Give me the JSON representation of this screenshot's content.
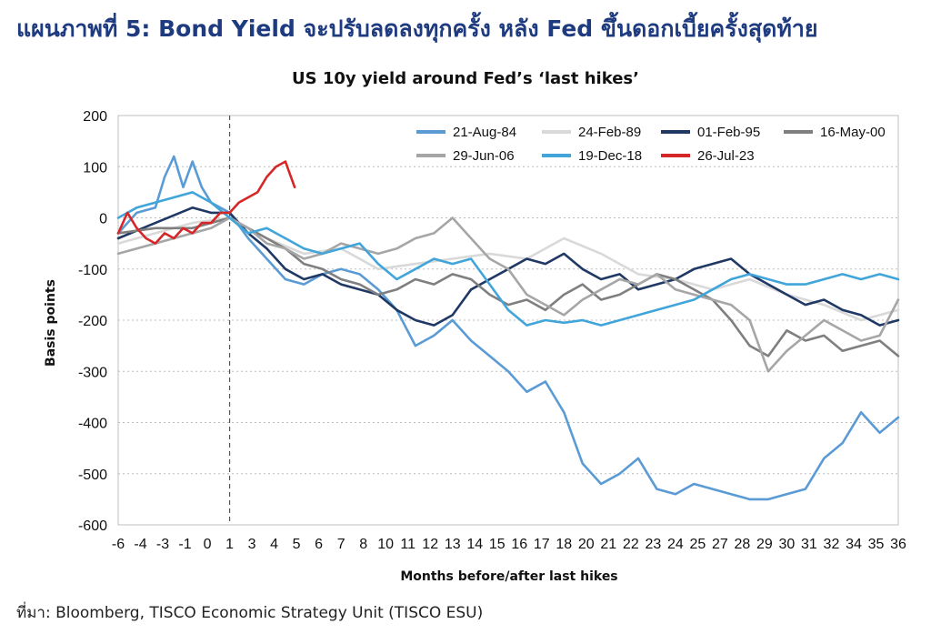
{
  "page": {
    "title": "แผนภาพที่ 5: Bond Yield จะปรับลดลงทุกครั้ง หลัง Fed ขึ้นดอกเบี้ยครั้งสุดท้าย",
    "source": "ที่มา: Bloomberg, TISCO Economic Strategy Unit (TISCO ESU)"
  },
  "chart_data": {
    "type": "line",
    "title": "US 10y yield around Fed’s ‘last hikes’",
    "xlabel": "Months before/after last hikes",
    "ylabel": "Basis points",
    "xlim": [
      -6,
      36
    ],
    "ylim": [
      -600,
      200
    ],
    "x_ticks": [
      "-6",
      "-4",
      "-3",
      "-1",
      "0",
      "1",
      "3",
      "4",
      "5",
      "6",
      "7",
      "8",
      "10",
      "11",
      "12",
      "13",
      "14",
      "15",
      "16",
      "17",
      "18",
      "20",
      "21",
      "22",
      "23",
      "24",
      "25",
      "27",
      "28",
      "29",
      "30",
      "31",
      "32",
      "34",
      "35",
      "36"
    ],
    "y_ticks": [
      200,
      100,
      0,
      -100,
      -200,
      -300,
      -400,
      -500,
      -600
    ],
    "grid": "horizontal dotted",
    "reference_line_x": 0,
    "legend": "top-right",
    "series": [
      {
        "name": "21-Aug-84",
        "color": "#5b9bd5",
        "x": [
          -6,
          -5,
          -4,
          -3.5,
          -3,
          -2.5,
          -2,
          -1.5,
          -1,
          0,
          1,
          2,
          3,
          4,
          5,
          6,
          7,
          8,
          9,
          10,
          11,
          12,
          13,
          14,
          15,
          16,
          17,
          18,
          19,
          20,
          21,
          22,
          23,
          24,
          25,
          26,
          27,
          28,
          29,
          30,
          31,
          32,
          33,
          34,
          35,
          36
        ],
        "y": [
          -30,
          10,
          20,
          80,
          120,
          60,
          110,
          60,
          30,
          10,
          -40,
          -80,
          -120,
          -130,
          -110,
          -100,
          -110,
          -140,
          -180,
          -250,
          -230,
          -200,
          -240,
          -270,
          -300,
          -340,
          -320,
          -380,
          -480,
          -520,
          -500,
          -470,
          -530,
          -540,
          -520,
          -530,
          -540,
          -550,
          -550,
          -540,
          -530,
          -470,
          -440,
          -380,
          -420,
          -390
        ]
      },
      {
        "name": "24-Feb-89",
        "color": "#d9d9d9",
        "x": [
          -6,
          -4,
          -2,
          0,
          2,
          4,
          6,
          8,
          10,
          12,
          14,
          16,
          18,
          20,
          22,
          24,
          26,
          28,
          30,
          32,
          34,
          36
        ],
        "y": [
          -50,
          -30,
          -10,
          0,
          -40,
          -70,
          -60,
          -100,
          -90,
          -80,
          -70,
          -80,
          -40,
          -70,
          -110,
          -120,
          -140,
          -120,
          -150,
          -170,
          -200,
          -180
        ]
      },
      {
        "name": "01-Feb-95",
        "color": "#1f3864",
        "x": [
          -6,
          -4,
          -2,
          -1,
          0,
          1,
          2,
          3,
          4,
          5,
          6,
          7,
          8,
          9,
          10,
          11,
          12,
          13,
          14,
          15,
          16,
          17,
          18,
          19,
          20,
          21,
          22,
          23,
          24,
          25,
          26,
          27,
          28,
          29,
          30,
          31,
          32,
          33,
          34,
          35,
          36
        ],
        "y": [
          -40,
          -10,
          20,
          10,
          10,
          -30,
          -60,
          -100,
          -120,
          -110,
          -130,
          -140,
          -150,
          -180,
          -200,
          -210,
          -190,
          -140,
          -120,
          -100,
          -80,
          -90,
          -70,
          -100,
          -120,
          -110,
          -140,
          -130,
          -120,
          -100,
          -90,
          -80,
          -110,
          -130,
          -150,
          -170,
          -160,
          -180,
          -190,
          -210,
          -200
        ]
      },
      {
        "name": "16-May-00",
        "color": "#7f7f7f",
        "x": [
          -6,
          -4,
          -2,
          -1,
          0,
          1,
          2,
          3,
          4,
          5,
          6,
          7,
          8,
          9,
          10,
          11,
          12,
          13,
          14,
          15,
          16,
          17,
          18,
          19,
          20,
          21,
          22,
          23,
          24,
          25,
          26,
          27,
          28,
          29,
          30,
          31,
          32,
          33,
          34,
          35,
          36
        ],
        "y": [
          -30,
          -20,
          -20,
          -10,
          0,
          -20,
          -40,
          -60,
          -90,
          -100,
          -120,
          -130,
          -150,
          -140,
          -120,
          -130,
          -110,
          -120,
          -150,
          -170,
          -160,
          -180,
          -150,
          -130,
          -160,
          -150,
          -130,
          -110,
          -120,
          -140,
          -160,
          -200,
          -250,
          -270,
          -220,
          -240,
          -230,
          -260,
          -250,
          -240,
          -270
        ]
      },
      {
        "name": "29-Jun-06",
        "color": "#a6a6a6",
        "x": [
          -6,
          -4,
          -2,
          -1,
          0,
          1,
          2,
          3,
          4,
          5,
          6,
          7,
          8,
          9,
          10,
          11,
          12,
          13,
          14,
          15,
          16,
          17,
          18,
          19,
          20,
          21,
          22,
          23,
          24,
          25,
          26,
          27,
          28,
          29,
          30,
          31,
          32,
          33,
          34,
          35,
          36
        ],
        "y": [
          -70,
          -50,
          -30,
          -20,
          0,
          -20,
          -50,
          -60,
          -80,
          -70,
          -50,
          -60,
          -70,
          -60,
          -40,
          -30,
          0,
          -40,
          -80,
          -100,
          -150,
          -170,
          -190,
          -160,
          -140,
          -120,
          -130,
          -110,
          -140,
          -150,
          -160,
          -170,
          -200,
          -300,
          -260,
          -230,
          -200,
          -220,
          -240,
          -230,
          -160
        ]
      },
      {
        "name": "19-Dec-18",
        "color": "#41a5d9",
        "x": [
          -6,
          -5,
          -4,
          -3,
          -2,
          -1,
          0,
          1,
          2,
          3,
          4,
          5,
          6,
          7,
          8,
          9,
          10,
          11,
          12,
          13,
          14,
          15,
          16,
          17,
          18,
          19,
          20,
          21,
          22,
          23,
          24,
          25,
          26,
          27,
          28,
          29,
          30,
          31,
          32,
          33,
          34,
          35,
          36
        ],
        "y": [
          0,
          20,
          30,
          40,
          50,
          30,
          0,
          -30,
          -20,
          -40,
          -60,
          -70,
          -60,
          -50,
          -90,
          -120,
          -100,
          -80,
          -90,
          -80,
          -130,
          -180,
          -210,
          -200,
          -205,
          -200,
          -210,
          -200,
          -190,
          -180,
          -170,
          -160,
          -140,
          -120,
          -110,
          -120,
          -130,
          -130,
          -120,
          -110,
          -120,
          -110,
          -120
        ]
      },
      {
        "name": "26-Jul-23",
        "color": "#d62728",
        "x": [
          -6,
          -5.5,
          -5,
          -4.5,
          -4,
          -3.5,
          -3,
          -2.5,
          -2,
          -1.5,
          -1,
          -0.5,
          0,
          0.5,
          1,
          1.5,
          2,
          2.5,
          3,
          3.5
        ],
        "y": [
          -30,
          10,
          -20,
          -40,
          -50,
          -30,
          -40,
          -20,
          -30,
          -10,
          -10,
          10,
          10,
          30,
          40,
          50,
          80,
          100,
          110,
          60
        ]
      }
    ]
  }
}
